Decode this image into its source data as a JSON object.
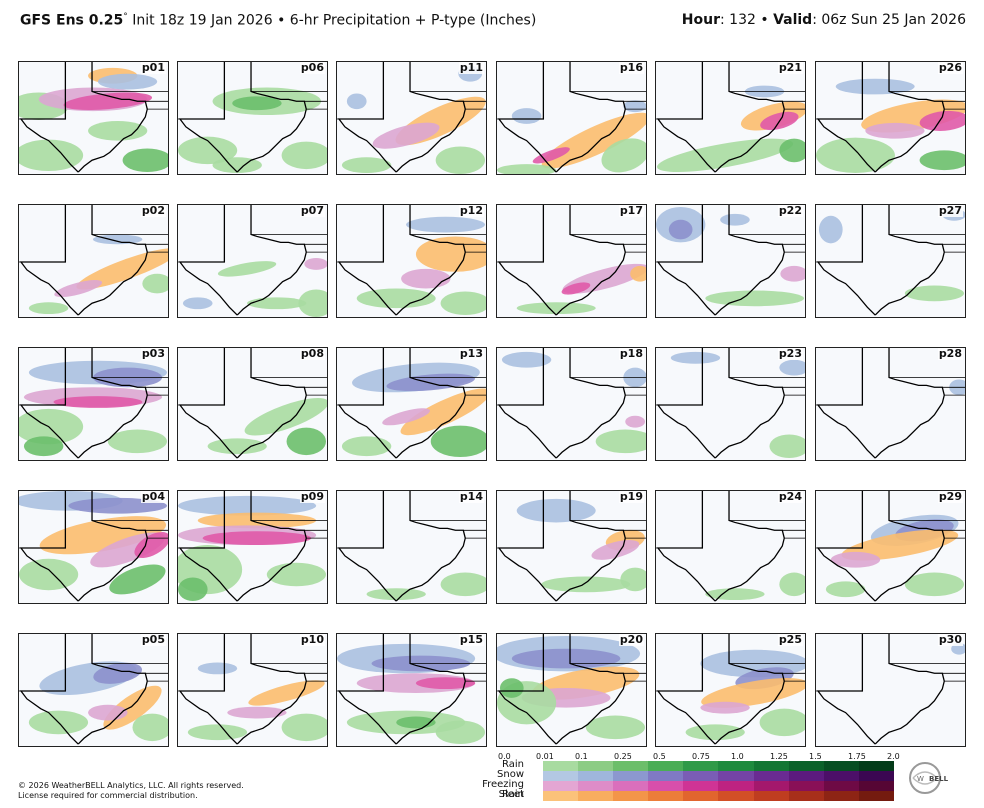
{
  "header": {
    "model": "GFS Ens 0.25",
    "degree": "°",
    "init": " Init 18z 19 Jan 2026",
    "bullet": " • ",
    "product": "6-hr Precipitation + P-type (Inches)",
    "hour_label": "Hour",
    "hour_value": ": 132 ",
    "valid_label": "Valid",
    "valid_value": ": 06z Sun 25 Jan 2026"
  },
  "members": [
    "p01",
    "p06",
    "p11",
    "p16",
    "p21",
    "p26",
    "p02",
    "p07",
    "p12",
    "p17",
    "p22",
    "p27",
    "p03",
    "p08",
    "p13",
    "p18",
    "p23",
    "p28",
    "p04",
    "p09",
    "p14",
    "p19",
    "p24",
    "p29",
    "p05",
    "p10",
    "p15",
    "p20",
    "p25",
    "p30"
  ],
  "legend": {
    "ticks": [
      "0.0",
      "0.01",
      "0.1",
      "0.25",
      "0.5",
      "0.75",
      "1.0",
      "1.25",
      "1.5",
      "1.75",
      "2.0"
    ],
    "types": [
      {
        "label": "Rain",
        "colors": [
          "#a8dba0",
          "#8ccc84",
          "#6cbe6a",
          "#4aad55",
          "#2f9a48",
          "#1e8a3e",
          "#137634",
          "#0b612a",
          "#064e22",
          "#033b19"
        ]
      },
      {
        "label": "Snow",
        "colors": [
          "#b3c8e3",
          "#9fb6dc",
          "#8c98cf",
          "#8079c4",
          "#7a5db5",
          "#7443a5",
          "#6a2b92",
          "#5c1a7e",
          "#4c0f68",
          "#3b0752"
        ]
      },
      {
        "label": "Freezing Rain",
        "colors": [
          "#e4a6d3",
          "#de8cc8",
          "#da6fbc",
          "#d84fab",
          "#cf3495",
          "#be2381",
          "#a4186c",
          "#891057",
          "#6e0a45",
          "#560634"
        ]
      },
      {
        "label": "Sleet",
        "colors": [
          "#fbc27a",
          "#f8ad5f",
          "#f39549",
          "#ec7d39",
          "#e1652e",
          "#d24f26",
          "#bf3d20",
          "#a72f1a",
          "#8d2414",
          "#741b0f"
        ]
      }
    ]
  },
  "copyright": [
    "© 2026 WeatherBELL Analytics, LLC. All rights reserved.",
    "License required for commercial distribution."
  ],
  "logo_text": "WeatherBELL"
}
